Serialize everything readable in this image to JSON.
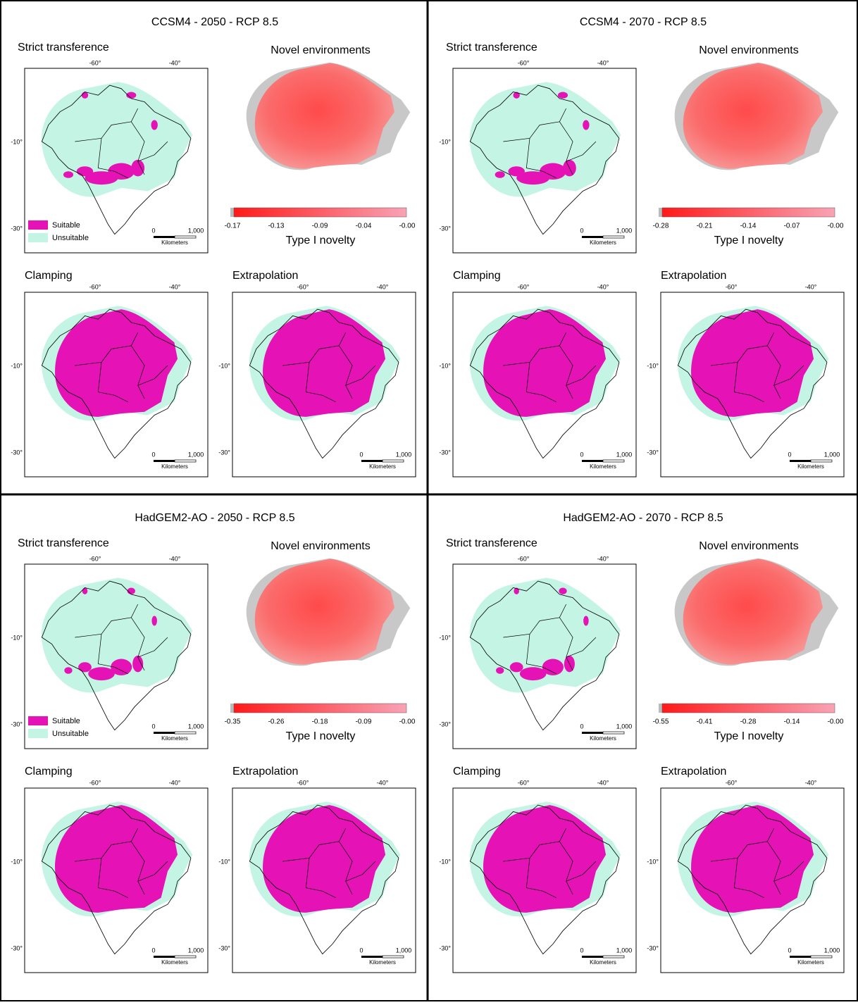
{
  "quadrants": [
    {
      "title": "CCSM4 - 2050 - RCP 8.5",
      "strict": {
        "title": "Strict transference",
        "legend": [
          "Suitable",
          "Unsuitable"
        ]
      },
      "novel": {
        "title": "Novel environments",
        "colorbar_ticks": [
          "-0.17",
          "-0.13",
          "-0.09",
          "-0.04",
          "-0.00"
        ],
        "colorbar_label": "Type I novelty"
      },
      "clamping": {
        "title": "Clamping"
      },
      "extrapolation": {
        "title": "Extrapolation"
      }
    },
    {
      "title": "CCSM4 - 2070 - RCP 8.5",
      "strict": {
        "title": "Strict transference"
      },
      "novel": {
        "title": "Novel environments",
        "colorbar_ticks": [
          "-0.28",
          "-0.21",
          "-0.14",
          "-0.07",
          "-0.00"
        ],
        "colorbar_label": "Type I novelty"
      },
      "clamping": {
        "title": "Clamping"
      },
      "extrapolation": {
        "title": "Extrapolation"
      }
    },
    {
      "title": "HadGEM2-AO - 2050 - RCP 8.5",
      "strict": {
        "title": "Strict transference",
        "legend": [
          "Suitable",
          "Unsuitable"
        ]
      },
      "novel": {
        "title": "Novel environments",
        "colorbar_ticks": [
          "-0.35",
          "-0.26",
          "-0.18",
          "-0.09",
          "-0.00"
        ],
        "colorbar_label": "Type I novelty"
      },
      "clamping": {
        "title": "Clamping"
      },
      "extrapolation": {
        "title": "Extrapolation"
      }
    },
    {
      "title": "HadGEM2-AO - 2070 - RCP 8.5",
      "strict": {
        "title": "Strict transference"
      },
      "novel": {
        "title": "Novel environments",
        "colorbar_ticks": [
          "-0.55",
          "-0.41",
          "-0.28",
          "-0.14",
          "-0.00"
        ],
        "colorbar_label": "Type I novelty"
      },
      "clamping": {
        "title": "Clamping"
      },
      "extrapolation": {
        "title": "Extrapolation"
      }
    }
  ],
  "map_labels": {
    "lon_ticks": [
      "-60°",
      "-40°"
    ],
    "lat_ticks": [
      "-10°",
      "-30°"
    ],
    "scale": [
      "0",
      "1,000",
      "Kilometers"
    ]
  }
}
